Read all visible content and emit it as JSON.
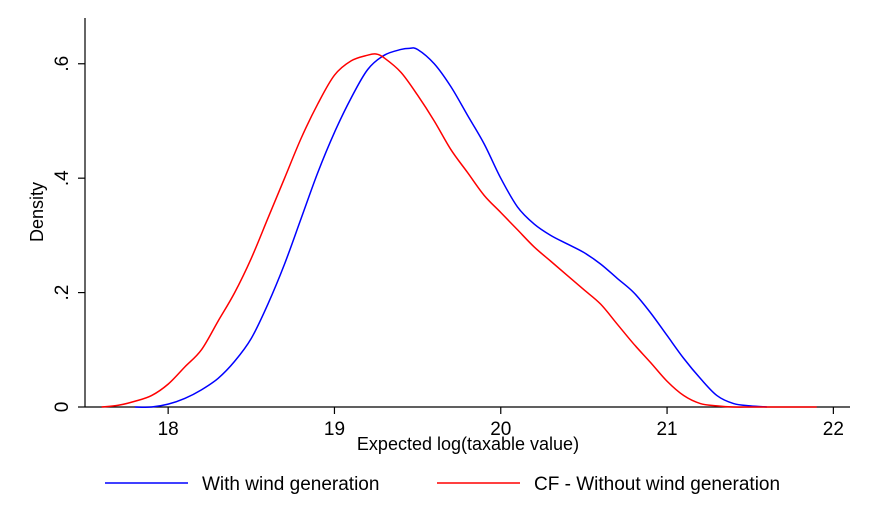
{
  "chart_data": {
    "type": "line",
    "title": "",
    "xlabel": "Expected log(taxable value)",
    "ylabel": "Density",
    "xlim": [
      17.5,
      22.1
    ],
    "ylim": [
      0,
      0.68
    ],
    "xticks": [
      18,
      19,
      20,
      21,
      22
    ],
    "xtick_labels": [
      "18",
      "19",
      "20",
      "21",
      "22"
    ],
    "yticks": [
      0,
      0.2,
      0.4,
      0.6
    ],
    "ytick_labels": [
      "0",
      ".2",
      ".4",
      ".6"
    ],
    "grid": false,
    "legend_position": "bottom",
    "series": [
      {
        "name": "With wind generation",
        "color": "#0000ff",
        "x": [
          17.8,
          17.9,
          18.0,
          18.1,
          18.2,
          18.3,
          18.4,
          18.5,
          18.6,
          18.7,
          18.8,
          18.9,
          19.0,
          19.1,
          19.2,
          19.3,
          19.4,
          19.45,
          19.5,
          19.6,
          19.7,
          19.8,
          19.9,
          20.0,
          20.1,
          20.2,
          20.3,
          20.4,
          20.5,
          20.6,
          20.7,
          20.8,
          20.9,
          21.0,
          21.1,
          21.2,
          21.3,
          21.4,
          21.5,
          21.6
        ],
        "y": [
          0.0,
          0.0,
          0.005,
          0.015,
          0.03,
          0.05,
          0.08,
          0.12,
          0.18,
          0.25,
          0.33,
          0.41,
          0.48,
          0.54,
          0.59,
          0.615,
          0.625,
          0.627,
          0.625,
          0.6,
          0.56,
          0.51,
          0.46,
          0.4,
          0.35,
          0.32,
          0.3,
          0.285,
          0.27,
          0.25,
          0.225,
          0.2,
          0.165,
          0.125,
          0.085,
          0.05,
          0.02,
          0.006,
          0.002,
          0.0
        ]
      },
      {
        "name": "CF - Without wind generation",
        "color": "#ff0000",
        "x": [
          17.6,
          17.7,
          17.8,
          17.9,
          18.0,
          18.1,
          18.2,
          18.3,
          18.4,
          18.5,
          18.6,
          18.7,
          18.8,
          18.9,
          19.0,
          19.1,
          19.2,
          19.25,
          19.3,
          19.4,
          19.5,
          19.6,
          19.7,
          19.8,
          19.9,
          20.0,
          20.1,
          20.2,
          20.3,
          20.4,
          20.5,
          20.6,
          20.7,
          20.8,
          20.9,
          21.0,
          21.1,
          21.2,
          21.3,
          21.4,
          21.5,
          21.6,
          21.7,
          21.8,
          21.9
        ],
        "y": [
          0.0,
          0.003,
          0.01,
          0.02,
          0.04,
          0.07,
          0.1,
          0.15,
          0.2,
          0.26,
          0.33,
          0.4,
          0.47,
          0.53,
          0.58,
          0.605,
          0.615,
          0.617,
          0.61,
          0.585,
          0.545,
          0.5,
          0.45,
          0.41,
          0.37,
          0.34,
          0.31,
          0.28,
          0.255,
          0.23,
          0.205,
          0.18,
          0.145,
          0.11,
          0.078,
          0.045,
          0.02,
          0.006,
          0.002,
          0.0,
          0.0,
          0.0,
          0.0,
          0.0,
          0.0
        ]
      }
    ]
  }
}
